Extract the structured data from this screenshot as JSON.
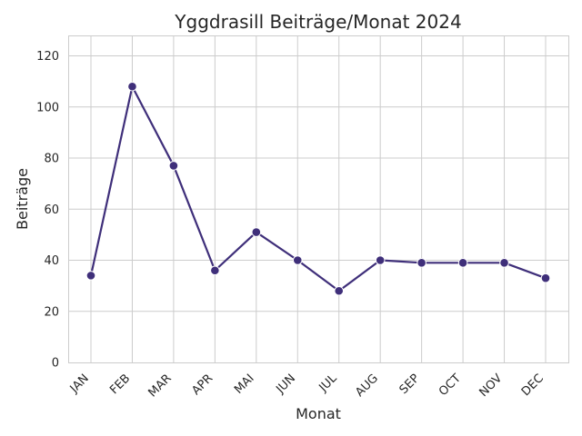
{
  "chart_data": {
    "type": "line",
    "title": "Yggdrasill Beiträge/Monat 2024",
    "xlabel": "Monat",
    "ylabel": "Beiträge",
    "categories": [
      "JAN",
      "FEB",
      "MAR",
      "APR",
      "MAI",
      "JUN",
      "JUL",
      "AUG",
      "SEP",
      "OCT",
      "NOV",
      "DEC"
    ],
    "series": [
      {
        "values": [
          34,
          108,
          77,
          36,
          51,
          40,
          28,
          40,
          39,
          39,
          39,
          33
        ]
      }
    ],
    "ylim": [
      0,
      128
    ],
    "yticks": [
      0,
      20,
      40,
      60,
      80,
      100,
      120
    ],
    "grid": true,
    "marker": "circle",
    "color": "#3f2f7a"
  }
}
